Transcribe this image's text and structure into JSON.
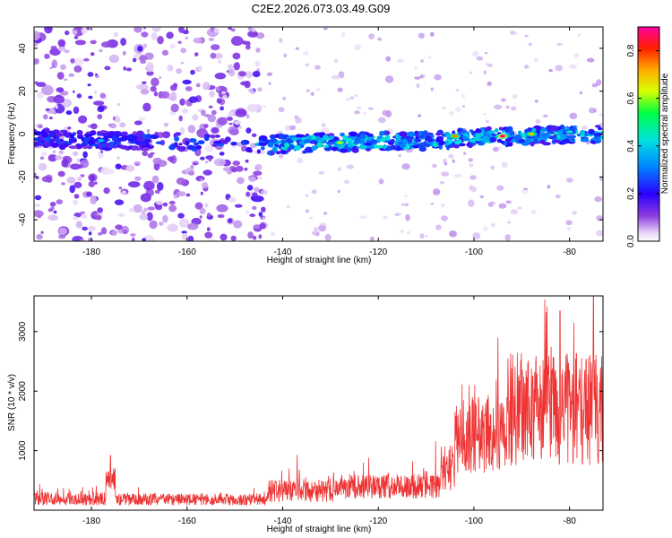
{
  "chart_data": [
    {
      "type": "heatmap",
      "title": "C2E2.2026.073.03.49.G09",
      "xlabel": "Height of straight line (km)",
      "ylabel": "Frequency (Hz)",
      "xlim": [
        -192,
        -73
      ],
      "ylim": [
        -50,
        50
      ],
      "x_ticks": [
        -180,
        -160,
        -140,
        -120,
        -100,
        -80
      ],
      "y_ticks": [
        -40,
        -20,
        0,
        20,
        40
      ],
      "colorbar": {
        "label": "Normalized spectral amplitude",
        "range": [
          0,
          0.9
        ],
        "ticks": [
          0.0,
          0.2,
          0.4,
          0.6,
          0.8
        ]
      },
      "features": {
        "signal_band_center_hz": [
          {
            "x": -190,
            "y": -2
          },
          {
            "x": -175,
            "y": -3
          },
          {
            "x": -145,
            "y": -5
          },
          {
            "x": -130,
            "y": -4
          },
          {
            "x": -110,
            "y": -3
          },
          {
            "x": -95,
            "y": -1
          },
          {
            "x": -75,
            "y": 0
          }
        ],
        "band_halfwidth_hz": 4,
        "peaks": [
          {
            "x": -178,
            "y": -3,
            "amplitude": 0.38
          },
          {
            "x": -128,
            "y": -4,
            "amplitude": 0.62
          },
          {
            "x": -104,
            "y": -1,
            "amplitude": 0.75
          },
          {
            "x": -94,
            "y": -1,
            "amplitude": 0.88
          },
          {
            "x": -88,
            "y": 0,
            "amplitude": 0.7
          },
          {
            "x": -80,
            "y": 1,
            "amplitude": 0.45
          }
        ],
        "noisy_region_x": [
          -192,
          -144
        ]
      }
    },
    {
      "type": "line",
      "xlabel": "Height of straight line (km)",
      "ylabel": "SNR (10 * v/v)",
      "xlim": [
        -192,
        -73
      ],
      "ylim": [
        0,
        3600
      ],
      "x_ticks": [
        -180,
        -160,
        -140,
        -120,
        -100,
        -80
      ],
      "y_ticks": [
        1000,
        2000,
        3000
      ],
      "color": "#ee3333",
      "series": [
        {
          "name": "SNR",
          "segments": [
            {
              "x_range": [
                -192,
                -177
              ],
              "baseline": 180,
              "spread": 220
            },
            {
              "x_range": [
                -177,
                -175
              ],
              "baseline": 500,
              "spread": 400
            },
            {
              "x_range": [
                -175,
                -143
              ],
              "baseline": 170,
              "spread": 200
            },
            {
              "x_range": [
                -143,
                -128
              ],
              "baseline": 300,
              "spread": 380
            },
            {
              "x_range": [
                -128,
                -107
              ],
              "baseline": 380,
              "spread": 420
            },
            {
              "x_range": [
                -107,
                -104
              ],
              "baseline": 650,
              "spread": 800
            },
            {
              "x_range": [
                -104,
                -93
              ],
              "baseline": 1200,
              "spread": 1300
            },
            {
              "x_range": [
                -93,
                -73
              ],
              "baseline": 1600,
              "spread": 1900
            }
          ],
          "peaks": [
            {
              "x": -176,
              "y": 920
            },
            {
              "x": -137,
              "y": 930
            },
            {
              "x": -122,
              "y": 880
            },
            {
              "x": -108,
              "y": 1160
            },
            {
              "x": -101,
              "y": 2100
            },
            {
              "x": -95,
              "y": 2900
            },
            {
              "x": -82,
              "y": 3350
            },
            {
              "x": -75,
              "y": 3600
            }
          ]
        }
      ]
    }
  ]
}
